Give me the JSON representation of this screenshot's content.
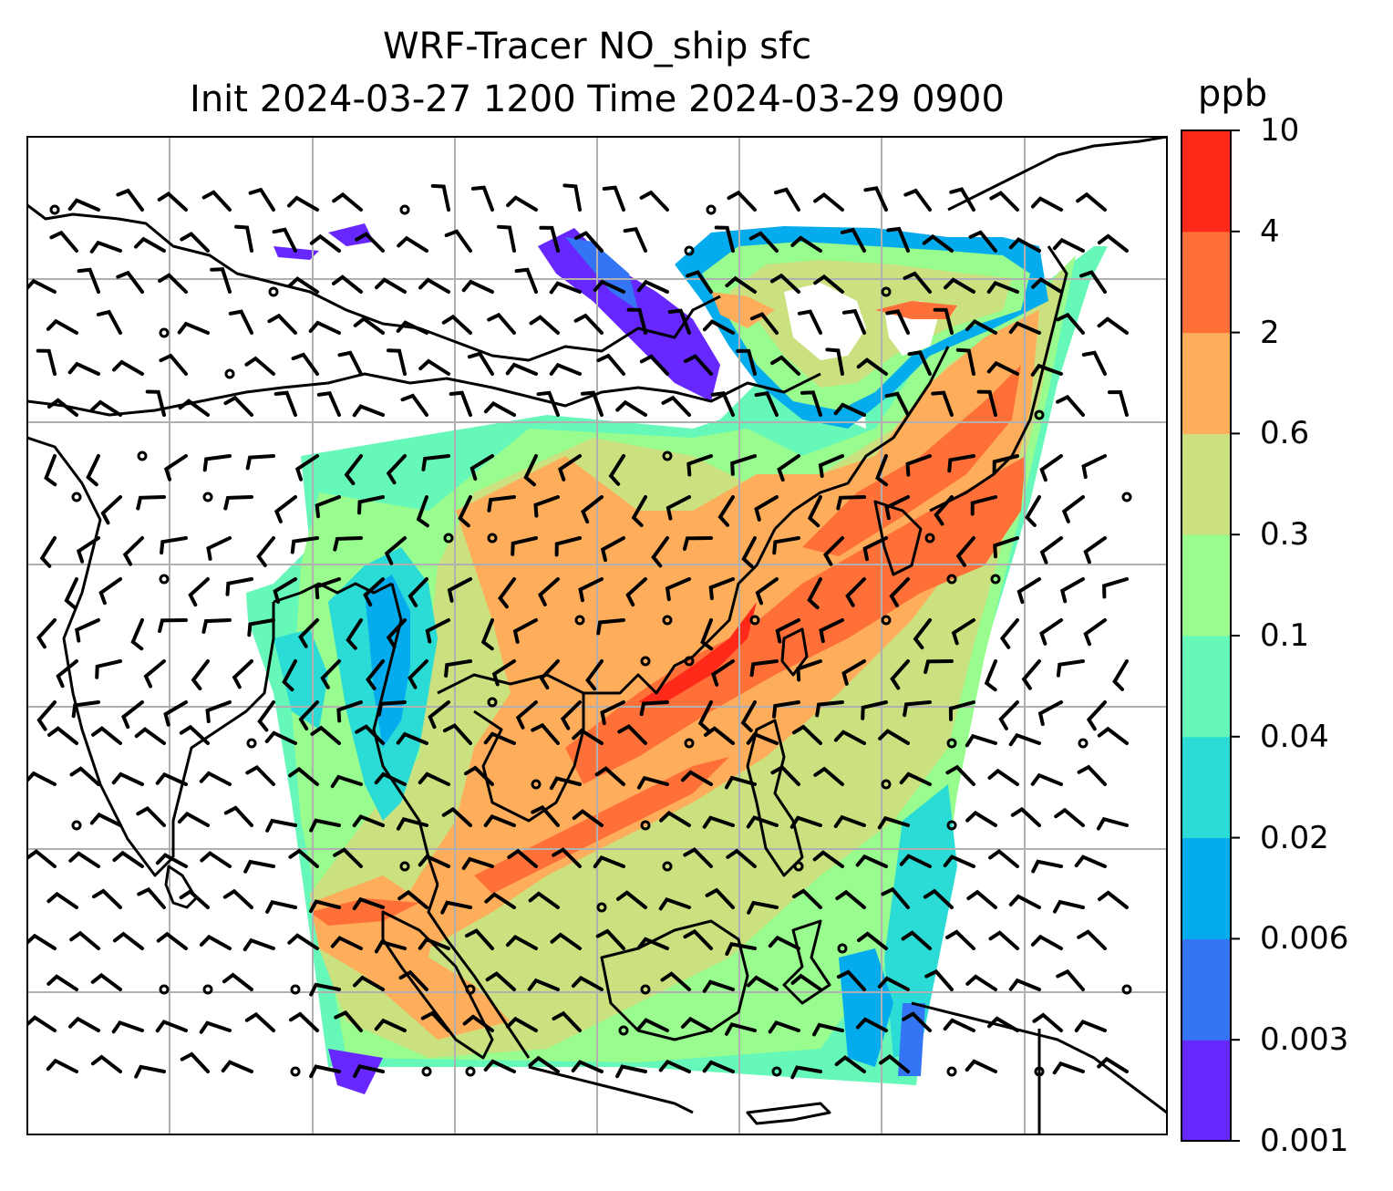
{
  "title": {
    "line1": "WRF-Tracer NO_ship sfc",
    "line2": "Init 2024-03-27 1200 Time 2024-03-29 0900"
  },
  "colorbar": {
    "unit": "ppb",
    "levels": [
      "0.001",
      "0.003",
      "0.006",
      "0.02",
      "0.04",
      "0.1",
      "0.3",
      "0.6",
      "2",
      "4",
      "10"
    ],
    "colors": [
      "#6628ff",
      "#3375f5",
      "#05aced",
      "#2bdcd6",
      "#66f8b9",
      "#98fc8e",
      "#cbe07f",
      "#fead5b",
      "#ff6f38",
      "#ff291a"
    ]
  },
  "map": {
    "background": "#ffffff",
    "coastline_color": "#000000",
    "grid_color": "#b0b0b0",
    "wind_barb_color": "#000000",
    "calm_marker": "circle",
    "gridlines": true
  }
}
